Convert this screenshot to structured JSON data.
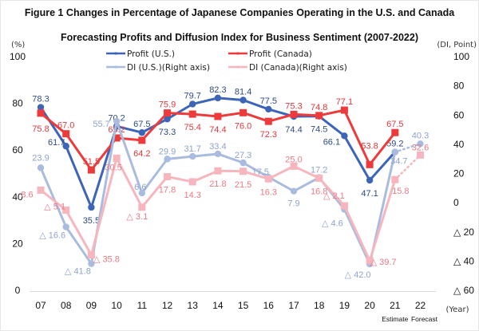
{
  "chart_data": {
    "type": "line",
    "title": "Figure 1 Changes in Percentage of Japanese Companies Operating in the U.S. and Canada",
    "subtitle": "Forecasting Profits and Diffusion Index for Business Sentiment (2007-2022)",
    "ylabel_left": "(%)",
    "ylabel_right": "(DI, Point)",
    "xlabel": "(Year)",
    "categories": [
      "07",
      "08",
      "09",
      "10",
      "11",
      "12",
      "13",
      "14",
      "15",
      "16",
      "17",
      "18",
      "19",
      "20",
      "21",
      "22"
    ],
    "x_notes": [
      {
        "category": "21",
        "text": "Estimate"
      },
      {
        "category": "22",
        "text": "Forecast"
      }
    ],
    "ylim_left": [
      0,
      100
    ],
    "yticks_left": [
      "0",
      "20",
      "40",
      "60",
      "80",
      "100"
    ],
    "ylim_right": [
      -60,
      100
    ],
    "yticks_right": [
      "△ 60",
      "△ 40",
      "△ 20",
      "0",
      "20",
      "40",
      "60",
      "80",
      "100"
    ],
    "grid": false,
    "legend_position": "top-center",
    "series": [
      {
        "name": "Profit (U.S.)",
        "axis": "left",
        "color": "#3c64b8",
        "label_color": "#2e4a80",
        "marker": "circle",
        "values": [
          78.3,
          61.7,
          35.5,
          70.2,
          67.5,
          73.3,
          79.7,
          82.3,
          81.4,
          77.5,
          74.4,
          74.5,
          66.1,
          47.1,
          59.2,
          null
        ],
        "labels": [
          "78.3",
          "61.7",
          "35.5",
          "70.2",
          "67.5",
          "73.3",
          "79.7",
          "82.3",
          "81.4",
          "77.5",
          "74.4",
          "74.5",
          "66.1",
          "47.1",
          "59.2",
          ""
        ]
      },
      {
        "name": "Profit (Canada)",
        "axis": "left",
        "color": "#ee3a3a",
        "label_color": "#e0383c",
        "marker": "square",
        "values": [
          75.8,
          67.0,
          51.5,
          65.2,
          64.2,
          75.9,
          75.4,
          74.4,
          76.0,
          72.3,
          75.3,
          74.8,
          77.1,
          53.8,
          67.5,
          null
        ],
        "labels": [
          "75.8",
          "67.0",
          "51.5",
          "65.2",
          "64.2",
          "75.9",
          "75.4",
          "74.4",
          "76.0",
          "72.3",
          "75.3",
          "74.8",
          "77.1",
          "53.8",
          "67.5",
          ""
        ]
      },
      {
        "name": "DI (U.S.)(Right axis)",
        "axis": "right",
        "color": "#a9bce0",
        "label_color": "#8ea3cc",
        "marker": "circle",
        "forecast_dotted_last": true,
        "values": [
          23.9,
          -16.6,
          -41.8,
          55.7,
          6.6,
          29.9,
          31.7,
          33.4,
          27.3,
          17.5,
          7.9,
          17.2,
          -4.6,
          -42.0,
          34.7,
          40.3
        ],
        "labels": [
          "23.9",
          "△ 16.6",
          "△ 41.8",
          "55.7",
          "6.6",
          "29.9",
          "31.7",
          "33.4",
          "27.3",
          "17.5",
          "7.9",
          "17.2",
          "△ 4.6",
          "△ 42.0",
          "34.7",
          "40.3"
        ]
      },
      {
        "name": "DI (Canada)(Right axis)",
        "axis": "right",
        "color": "#f7b6bd",
        "label_color": "#ea7a86",
        "marker": "square",
        "forecast_dotted_last": true,
        "values": [
          8.6,
          -5.1,
          -35.8,
          30.5,
          -3.1,
          17.8,
          14.3,
          21.8,
          21.5,
          16.3,
          25.0,
          16.8,
          -2.1,
          -39.7,
          15.8,
          32.6
        ],
        "labels": [
          "8.6",
          "△ 5.1",
          "△ 35.8",
          "30.5",
          "△ 3.1",
          "17.8",
          "14.3",
          "21.8",
          "21.5",
          "16.3",
          "25.0",
          "16.8",
          "△ 2.1",
          "△ 39.7",
          "15.8",
          "32.6"
        ]
      }
    ]
  }
}
